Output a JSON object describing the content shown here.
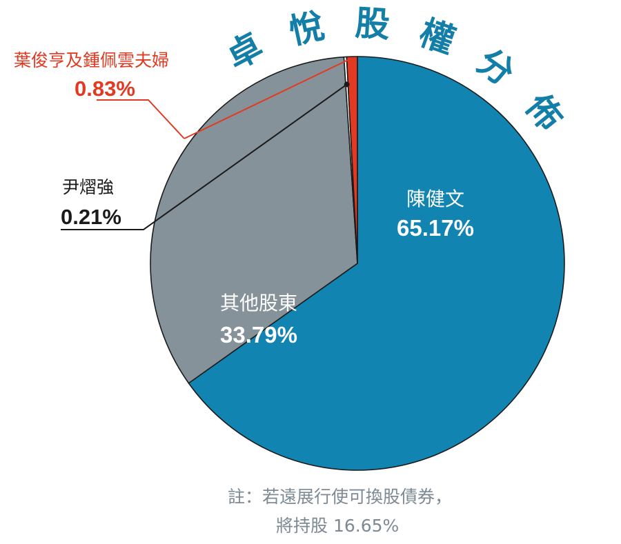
{
  "chart_data": {
    "type": "pie",
    "title": "卓悅股權分佈",
    "slices": [
      {
        "name": "陳健文",
        "value": 65.17,
        "label": "65.17%",
        "color": "#1184b2"
      },
      {
        "name": "其他股東",
        "value": 33.79,
        "label": "33.79%",
        "color": "#869299"
      },
      {
        "name": "尹熠強",
        "value": 0.21,
        "label": "0.21%",
        "color": "#ffffff"
      },
      {
        "name": "葉俊亨及鍾佩雲夫婦",
        "value": 0.83,
        "label": "0.83%",
        "color": "#e23a22"
      }
    ],
    "start_angle_deg": 0,
    "direction": "clockwise",
    "legend": "none",
    "callout_colors": {
      "尹熠強": "#1a1a1a",
      "葉俊亨及鍾佩雲夫婦": "#e23a22"
    },
    "note": {
      "line1": "註：若遠展行使可換股債券，",
      "line2": "將持股 16.65%"
    }
  }
}
